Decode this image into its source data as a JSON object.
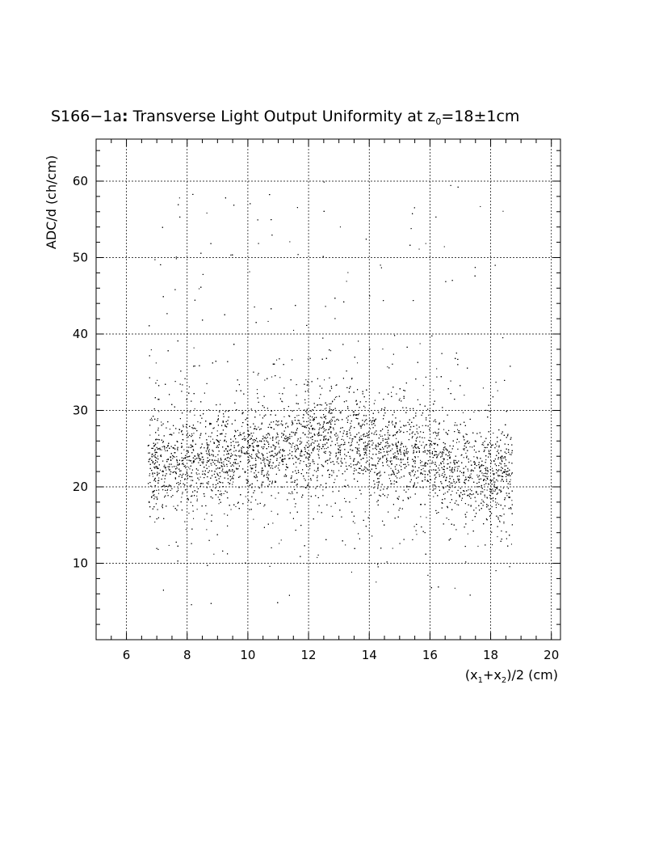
{
  "chart_data": {
    "type": "scatter",
    "title": {
      "prefix": "S166−1a",
      "colon": ":",
      "main": " Transverse Light Output Uniformity at z",
      "sub": "0",
      "tail": "=18±1cm"
    },
    "ylabel": "ADC/d (ch/cm)",
    "xlabel": {
      "p1": "(x",
      "s1": "1",
      "p2": "+x",
      "s2": "2",
      "p3": ")/2 (cm)"
    },
    "xlim": [
      5,
      20.3
    ],
    "ylim": [
      0,
      65.5
    ],
    "x_ticks": [
      "6",
      "8",
      "10",
      "12",
      "14",
      "16",
      "18",
      "20"
    ],
    "y_ticks": [
      "10",
      "20",
      "30",
      "40",
      "50",
      "60"
    ],
    "grid": true,
    "density_profile": {
      "x_range": [
        6.7,
        18.7
      ],
      "x": [
        7,
        8,
        9,
        10,
        11,
        12,
        13,
        14,
        15,
        16,
        17,
        18
      ],
      "center": [
        23,
        23.5,
        24,
        24.5,
        25,
        25.5,
        26,
        25.5,
        24.5,
        23.5,
        22,
        21.5
      ]
    },
    "n_points": 9000
  }
}
